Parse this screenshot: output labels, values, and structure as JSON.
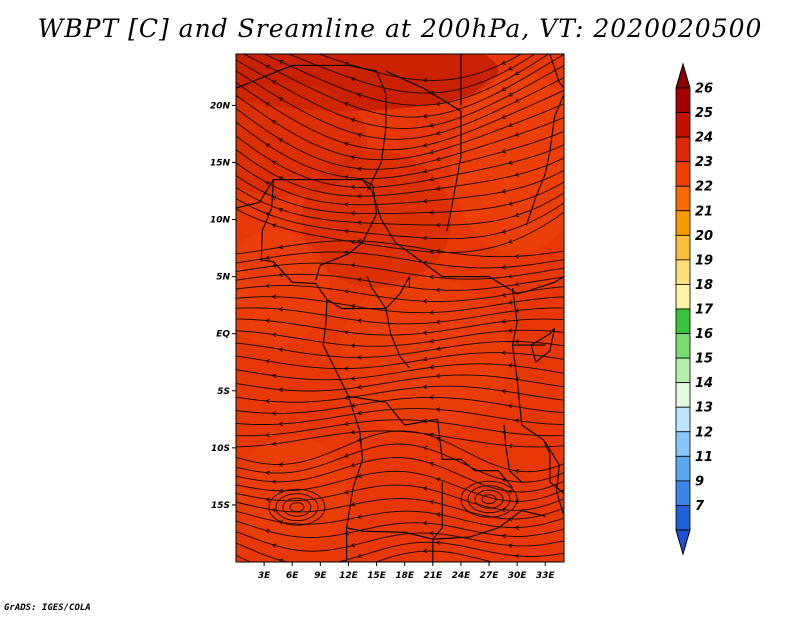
{
  "title": "WBPT [C] and Sreamline at 200hPa, VT: 2020020500",
  "credit": "GrADS: IGES/COLA",
  "map": {
    "field": "WBPT",
    "unit": "C",
    "level_hpa": 200,
    "valid_time": "2020020500",
    "lon_range": [
      0,
      35
    ],
    "lat_range": [
      -20,
      24.5
    ],
    "lon_ticks": [
      {
        "value": 3,
        "label": "3E"
      },
      {
        "value": 6,
        "label": "6E"
      },
      {
        "value": 9,
        "label": "9E"
      },
      {
        "value": 12,
        "label": "12E"
      },
      {
        "value": 15,
        "label": "15E"
      },
      {
        "value": 18,
        "label": "18E"
      },
      {
        "value": 21,
        "label": "21E"
      },
      {
        "value": 24,
        "label": "24E"
      },
      {
        "value": 27,
        "label": "27E"
      },
      {
        "value": 30,
        "label": "30E"
      },
      {
        "value": 33,
        "label": "33E"
      }
    ],
    "lat_ticks": [
      {
        "value": 20,
        "label": "20N"
      },
      {
        "value": 15,
        "label": "15N"
      },
      {
        "value": 10,
        "label": "10N"
      },
      {
        "value": 5,
        "label": "5N"
      },
      {
        "value": 0,
        "label": "EQ"
      },
      {
        "value": -5,
        "label": "5S"
      },
      {
        "value": -10,
        "label": "10S"
      },
      {
        "value": -15,
        "label": "15S"
      }
    ]
  },
  "colorbar": {
    "levels": [
      {
        "label": "26",
        "color": "#a50000"
      },
      {
        "label": "25",
        "color": "#c41000"
      },
      {
        "label": "24",
        "color": "#dc2800"
      },
      {
        "label": "23",
        "color": "#f04000"
      },
      {
        "label": "22",
        "color": "#f86a00"
      },
      {
        "label": "21",
        "color": "#f99a00"
      },
      {
        "label": "20",
        "color": "#fbbd3a"
      },
      {
        "label": "19",
        "color": "#fde07a"
      },
      {
        "label": "18",
        "color": "#fff4a6"
      },
      {
        "label": "17",
        "color": "#38c43c"
      },
      {
        "label": "16",
        "color": "#78dc70"
      },
      {
        "label": "15",
        "color": "#b4f0a8"
      },
      {
        "label": "14",
        "color": "#e4fae0"
      },
      {
        "label": "13",
        "color": "#bde6ff"
      },
      {
        "label": "12",
        "color": "#88c6f8"
      },
      {
        "label": "11",
        "color": "#5aa8f2"
      },
      {
        "label": "9",
        "color": "#3a84ea"
      },
      {
        "label": "7",
        "color": "#1e60d8"
      }
    ],
    "top_arrow_color": "#8c0000",
    "bottom_arrow_color": "#1a52d0"
  },
  "colors": {
    "field_base": "#e83808",
    "field_warm": "#d42a00",
    "field_hot": "#c01a00",
    "field_cool": "#f24a08",
    "streamline": "#1a0800",
    "border": "#000000"
  }
}
